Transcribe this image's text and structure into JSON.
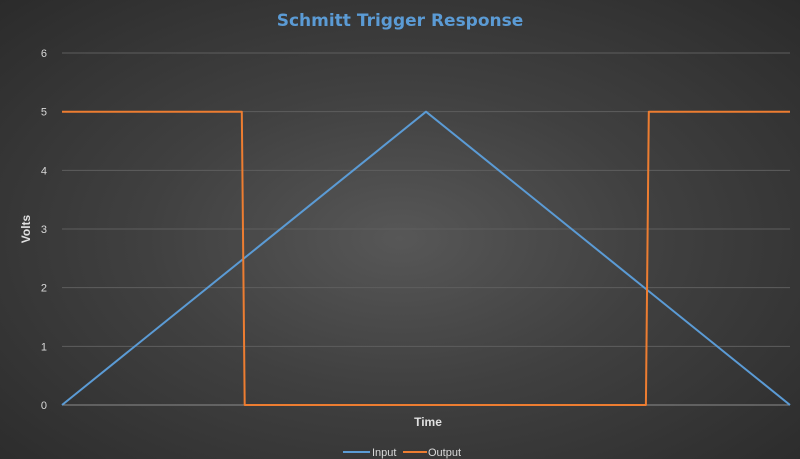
{
  "chart_data": {
    "type": "line",
    "title": "Schmitt Trigger Response",
    "xlabel": "Time",
    "ylabel": "Volts",
    "x_ticks_shown": false,
    "ylim": [
      0,
      6
    ],
    "yticks": [
      0,
      1,
      2,
      3,
      4,
      5,
      6
    ],
    "xlim": [
      0,
      100
    ],
    "grid": true,
    "legend_position": "bottom",
    "series": [
      {
        "name": "Input",
        "color": "#5b9bd5",
        "x": [
          0,
          50,
          100
        ],
        "y": [
          0,
          5,
          0
        ]
      },
      {
        "name": "Output",
        "color": "#ed7d31",
        "x": [
          0,
          24.7,
          25.1,
          80.2,
          80.6,
          100
        ],
        "y": [
          5,
          5,
          0,
          0,
          5,
          5
        ]
      }
    ],
    "title_color": "#5b9bd5"
  }
}
